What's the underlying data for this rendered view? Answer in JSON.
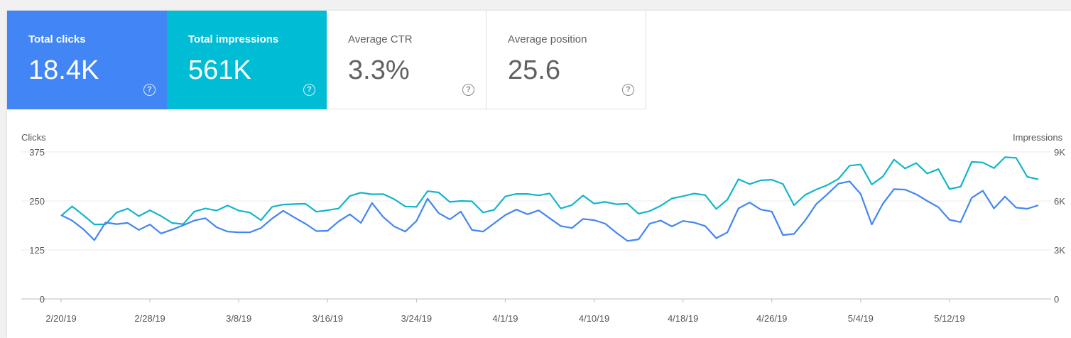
{
  "cards": [
    {
      "label": "Total clicks",
      "value": "18.4K",
      "help_glyph": "?",
      "color": "#4285f4"
    },
    {
      "label": "Total impressions",
      "value": "561K",
      "help_glyph": "?",
      "color": "#00bcd4"
    },
    {
      "label": "Average CTR",
      "value": "3.3%",
      "help_glyph": "?"
    },
    {
      "label": "Average position",
      "value": "25.6",
      "help_glyph": "?"
    }
  ],
  "chart_data": {
    "type": "line",
    "left_axis": {
      "label": "Clicks",
      "ticks": [
        "375",
        "250",
        "125",
        "0"
      ],
      "range": [
        0,
        375
      ]
    },
    "right_axis": {
      "label": "Impressions",
      "ticks": [
        "9K",
        "6K",
        "3K",
        "0"
      ],
      "range": [
        0,
        9000
      ]
    },
    "x_ticks": [
      "2/20/19",
      "2/28/19",
      "3/8/19",
      "3/16/19",
      "3/24/19",
      "4/1/19",
      "4/10/19",
      "4/18/19",
      "4/26/19",
      "5/4/19",
      "5/12/19"
    ],
    "series": [
      {
        "metric": "clicks",
        "axis": "left",
        "color": "#4285f4",
        "values": [
          214,
          200,
          178,
          150,
          195,
          191,
          194,
          176,
          190,
          167,
          177,
          188,
          200,
          206,
          183,
          172,
          170,
          170,
          181,
          205,
          225,
          208,
          192,
          173,
          174,
          198,
          216,
          194,
          245,
          209,
          185,
          172,
          199,
          256,
          219,
          203,
          223,
          176,
          172,
          193,
          214,
          228,
          216,
          226,
          206,
          186,
          181,
          204,
          201,
          192,
          169,
          148,
          152,
          192,
          200,
          185,
          199,
          195,
          186,
          155,
          170,
          231,
          246,
          228,
          223,
          163,
          166,
          200,
          242,
          267,
          294,
          300,
          268,
          190,
          243,
          280,
          279,
          267,
          250,
          234,
          202,
          196,
          258,
          276,
          231,
          261,
          233,
          230,
          239
        ],
        "color_name": "blue"
      },
      {
        "metric": "impressions",
        "axis": "right",
        "color": "#12b5cb",
        "values": [
          5090,
          5670,
          5130,
          4560,
          4570,
          5290,
          5530,
          5070,
          5430,
          5080,
          4650,
          4580,
          5350,
          5540,
          5410,
          5720,
          5410,
          5290,
          4820,
          5640,
          5780,
          5810,
          5830,
          5340,
          5430,
          5540,
          6300,
          6510,
          6410,
          6420,
          6110,
          5660,
          5640,
          6600,
          6520,
          5940,
          6000,
          5980,
          5290,
          5460,
          6280,
          6430,
          6430,
          6340,
          6460,
          5540,
          5750,
          6340,
          5840,
          5940,
          5800,
          5830,
          5220,
          5380,
          5710,
          6150,
          6290,
          6450,
          6360,
          5510,
          6080,
          7330,
          7030,
          7260,
          7300,
          7040,
          5740,
          6370,
          6700,
          6970,
          7350,
          8160,
          8230,
          7010,
          7490,
          8530,
          7990,
          8320,
          7680,
          7950,
          6730,
          6870,
          8390,
          8350,
          8010,
          8680,
          8640,
          7480,
          7320
        ]
      }
    ]
  }
}
